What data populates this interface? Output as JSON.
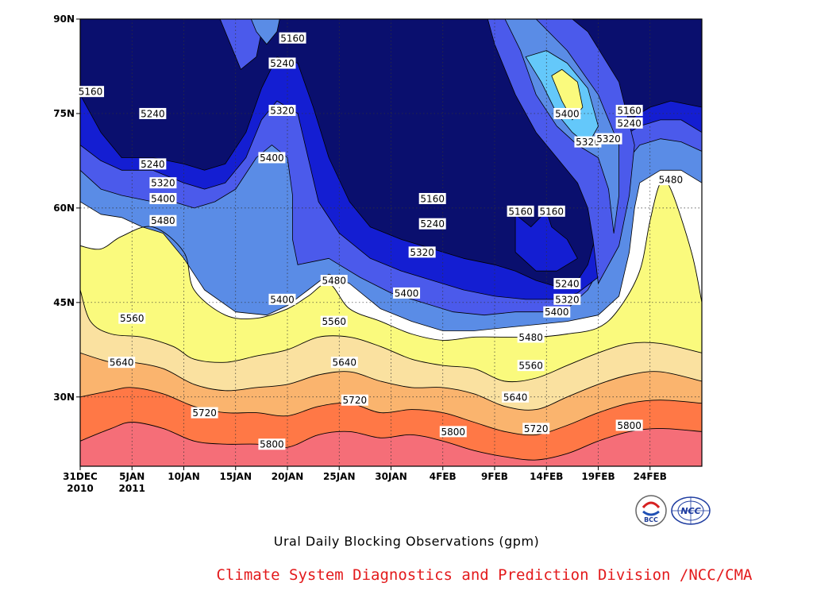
{
  "chart_data": {
    "type": "heatmap",
    "subtype": "filled-contour",
    "title": "Ural Daily Blocking Observations (gpm)",
    "credit": "Climate System Diagnostics and Prediction Division /NCC/CMA",
    "logos": [
      "BCC",
      "NCC"
    ],
    "x_ticks": [
      {
        "day": 0,
        "line1": "31DEC",
        "line2": "2010"
      },
      {
        "day": 5,
        "line1": "5JAN",
        "line2": "2011"
      },
      {
        "day": 10,
        "line1": "10JAN",
        "line2": ""
      },
      {
        "day": 15,
        "line1": "15JAN",
        "line2": ""
      },
      {
        "day": 20,
        "line1": "20JAN",
        "line2": ""
      },
      {
        "day": 25,
        "line1": "25JAN",
        "line2": ""
      },
      {
        "day": 30,
        "line1": "30JAN",
        "line2": ""
      },
      {
        "day": 35,
        "line1": "4FEB",
        "line2": ""
      },
      {
        "day": 40,
        "line1": "9FEB",
        "line2": ""
      },
      {
        "day": 45,
        "line1": "14FEB",
        "line2": ""
      },
      {
        "day": 50,
        "line1": "19FEB",
        "line2": ""
      },
      {
        "day": 55,
        "line1": "24FEB",
        "line2": ""
      }
    ],
    "y_ticks": [
      {
        "lat": 30,
        "label": "30N"
      },
      {
        "lat": 45,
        "label": "45N"
      },
      {
        "lat": 60,
        "label": "60N"
      },
      {
        "lat": 75,
        "label": "75N"
      },
      {
        "lat": 90,
        "label": "90N"
      }
    ],
    "grid": "dotted",
    "levels": [
      5160,
      5240,
      5320,
      5400,
      5480,
      5560,
      5640,
      5720,
      5800
    ],
    "band_colors": [
      "#0a0f6e",
      "#141ed2",
      "#4b5aeb",
      "#5a8ce6",
      "#64c8fa",
      "#fafa7d",
      "#fae1a0",
      "#fab46e",
      "#ff7846",
      "#f56e78"
    ],
    "contour_lines": [
      {
        "level": 5800,
        "points": [
          [
            0,
            23
          ],
          [
            3,
            25
          ],
          [
            5,
            26
          ],
          [
            8,
            25
          ],
          [
            11,
            23
          ],
          [
            14,
            22.5
          ],
          [
            17,
            22.5
          ],
          [
            20,
            22
          ],
          [
            23,
            24
          ],
          [
            26,
            24.5
          ],
          [
            29,
            23.5
          ],
          [
            32,
            24
          ],
          [
            35,
            23
          ],
          [
            38,
            21.5
          ],
          [
            41,
            20.5
          ],
          [
            44,
            20
          ],
          [
            47,
            21
          ],
          [
            50,
            23
          ],
          [
            53,
            24.5
          ],
          [
            56,
            25
          ],
          [
            60,
            24.5
          ]
        ]
      },
      {
        "level": 5720,
        "points": [
          [
            0,
            30
          ],
          [
            3,
            31
          ],
          [
            5,
            31.5
          ],
          [
            8,
            30.5
          ],
          [
            11,
            28.5
          ],
          [
            14,
            27.5
          ],
          [
            17,
            27.5
          ],
          [
            20,
            27
          ],
          [
            23,
            28.5
          ],
          [
            26,
            29
          ],
          [
            29,
            27.5
          ],
          [
            32,
            28
          ],
          [
            35,
            27.5
          ],
          [
            38,
            26
          ],
          [
            41,
            24.5
          ],
          [
            44,
            24
          ],
          [
            47,
            25.5
          ],
          [
            50,
            27.5
          ],
          [
            53,
            29
          ],
          [
            56,
            29.5
          ],
          [
            60,
            29
          ]
        ]
      },
      {
        "level": 5640,
        "points": [
          [
            0,
            37
          ],
          [
            3,
            35.5
          ],
          [
            5,
            35.5
          ],
          [
            8,
            34.5
          ],
          [
            11,
            32
          ],
          [
            14,
            31
          ],
          [
            17,
            31.5
          ],
          [
            20,
            32
          ],
          [
            23,
            33.5
          ],
          [
            26,
            34
          ],
          [
            29,
            32.5
          ],
          [
            32,
            31.5
          ],
          [
            35,
            31.5
          ],
          [
            38,
            30.5
          ],
          [
            41,
            28.5
          ],
          [
            44,
            28
          ],
          [
            47,
            30
          ],
          [
            50,
            32
          ],
          [
            53,
            33.5
          ],
          [
            56,
            34
          ],
          [
            60,
            32.5
          ]
        ]
      },
      {
        "level": 5560,
        "points": [
          [
            0,
            47
          ],
          [
            1,
            42
          ],
          [
            3,
            40
          ],
          [
            6,
            39.5
          ],
          [
            9,
            38
          ],
          [
            11,
            36
          ],
          [
            14,
            35.5
          ],
          [
            17,
            36.5
          ],
          [
            20,
            37.5
          ],
          [
            23,
            39.5
          ],
          [
            26,
            39.5
          ],
          [
            29,
            38
          ],
          [
            32,
            36
          ],
          [
            35,
            35
          ],
          [
            38,
            34.5
          ],
          [
            41,
            32.5
          ],
          [
            44,
            33
          ],
          [
            47,
            35
          ],
          [
            50,
            37
          ],
          [
            53,
            38.5
          ],
          [
            56,
            38.5
          ],
          [
            60,
            37
          ]
        ]
      },
      {
        "level": 5480,
        "points": [
          [
            0,
            54
          ],
          [
            2,
            53.5
          ],
          [
            4,
            55.5
          ],
          [
            7,
            57
          ],
          [
            10,
            53
          ],
          [
            11,
            47
          ],
          [
            14,
            43
          ],
          [
            17,
            42.5
          ],
          [
            20,
            44
          ],
          [
            22,
            46
          ],
          [
            24,
            48
          ],
          [
            26,
            44
          ],
          [
            29,
            42
          ],
          [
            32,
            40
          ],
          [
            35,
            39
          ],
          [
            38,
            39.5
          ],
          [
            41,
            39.5
          ],
          [
            44,
            39.5
          ],
          [
            47,
            40
          ],
          [
            50,
            41
          ],
          [
            52,
            44
          ],
          [
            54,
            50
          ],
          [
            55,
            58
          ],
          [
            56,
            64
          ],
          [
            57,
            63
          ],
          [
            59,
            53
          ],
          [
            60,
            45
          ]
        ]
      }
    ],
    "contour_labels": [
      {
        "value": 5160,
        "day": 1,
        "lat": 78.5
      },
      {
        "value": 5240,
        "day": 7,
        "lat": 75
      },
      {
        "value": 5240,
        "day": 7,
        "lat": 67
      },
      {
        "value": 5320,
        "day": 8,
        "lat": 64
      },
      {
        "value": 5400,
        "day": 8,
        "lat": 61.5
      },
      {
        "value": 5480,
        "day": 8,
        "lat": 58
      },
      {
        "value": 5560,
        "day": 5,
        "lat": 42.5
      },
      {
        "value": 5640,
        "day": 4,
        "lat": 35.5
      },
      {
        "value": 5720,
        "day": 12,
        "lat": 27.5
      },
      {
        "value": 5800,
        "day": 18.5,
        "lat": 22.5
      },
      {
        "value": 5160,
        "day": 20.5,
        "lat": 87
      },
      {
        "value": 5240,
        "day": 19.5,
        "lat": 83
      },
      {
        "value": 5320,
        "day": 19.5,
        "lat": 75.5
      },
      {
        "value": 5400,
        "day": 18.5,
        "lat": 68
      },
      {
        "value": 5400,
        "day": 19.5,
        "lat": 45.5
      },
      {
        "value": 5480,
        "day": 24.5,
        "lat": 48.5
      },
      {
        "value": 5560,
        "day": 24.5,
        "lat": 42
      },
      {
        "value": 5640,
        "day": 25.5,
        "lat": 35.5
      },
      {
        "value": 5720,
        "day": 26.5,
        "lat": 29.5
      },
      {
        "value": 5160,
        "day": 34,
        "lat": 61.5
      },
      {
        "value": 5240,
        "day": 34,
        "lat": 57.5
      },
      {
        "value": 5320,
        "day": 33,
        "lat": 53
      },
      {
        "value": 5400,
        "day": 31.5,
        "lat": 46.5
      },
      {
        "value": 5800,
        "day": 36,
        "lat": 24.5
      },
      {
        "value": 5480,
        "day": 43.5,
        "lat": 39.5
      },
      {
        "value": 5560,
        "day": 43.5,
        "lat": 35
      },
      {
        "value": 5640,
        "day": 42,
        "lat": 30
      },
      {
        "value": 5720,
        "day": 44,
        "lat": 25
      },
      {
        "value": 5160,
        "day": 42.5,
        "lat": 59.5
      },
      {
        "value": 5160,
        "day": 45.5,
        "lat": 59.5
      },
      {
        "value": 5240,
        "day": 47,
        "lat": 48
      },
      {
        "value": 5320,
        "day": 47,
        "lat": 45.5
      },
      {
        "value": 5400,
        "day": 46,
        "lat": 43.5
      },
      {
        "value": 5400,
        "day": 47,
        "lat": 75
      },
      {
        "value": 5320,
        "day": 49,
        "lat": 70.5
      },
      {
        "value": 5320,
        "day": 51,
        "lat": 71
      },
      {
        "value": 5160,
        "day": 53,
        "lat": 75.5
      },
      {
        "value": 5240,
        "day": 53,
        "lat": 73.5
      },
      {
        "value": 5480,
        "day": 57,
        "lat": 64.5
      },
      {
        "value": 5800,
        "day": 53,
        "lat": 25.5
      }
    ]
  }
}
